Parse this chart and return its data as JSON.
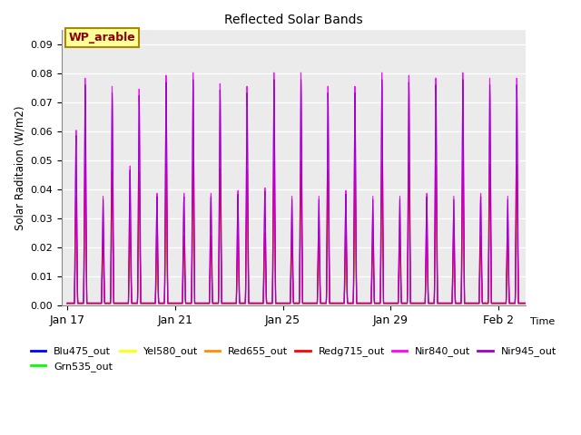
{
  "title": "Reflected Solar Bands",
  "xlabel": "Time",
  "ylabel": "Solar Raditaion (W/m2)",
  "ylim": [
    0,
    0.095
  ],
  "yticks": [
    0.0,
    0.01,
    0.02,
    0.03,
    0.04,
    0.05,
    0.06,
    0.07,
    0.08,
    0.09
  ],
  "annotation": "WP_arable",
  "annotation_color": "#8B0000",
  "annotation_bg": "#FFFF99",
  "annotation_border": "#AA8800",
  "series": [
    {
      "name": "Blu475_out",
      "color": "#0000FF",
      "scale": 0.48
    },
    {
      "name": "Grn535_out",
      "color": "#00FF00",
      "scale": 0.52
    },
    {
      "name": "Yel580_out",
      "color": "#FFFF00",
      "scale": 0.54
    },
    {
      "name": "Red655_out",
      "color": "#FF8C00",
      "scale": 0.56
    },
    {
      "name": "Redg715_out",
      "color": "#FF0000",
      "scale": 0.62
    },
    {
      "name": "Nir840_out",
      "color": "#FF00FF",
      "scale": 1.0
    },
    {
      "name": "Nir945_out",
      "color": "#9900CC",
      "scale": 0.97
    }
  ],
  "xtick_labels": [
    "Jan 17",
    "Jan 21",
    "Jan 25",
    "Jan 29",
    "Feb 2"
  ],
  "xtick_positions": [
    0,
    4,
    8,
    12,
    16
  ],
  "plot_bg": "#EBEBEB",
  "nir840_peaks": [
    0.064,
    0.083,
    0.04,
    0.08,
    0.051,
    0.079,
    0.041,
    0.084,
    0.041,
    0.085,
    0.041,
    0.081,
    0.042,
    0.08,
    0.043,
    0.085,
    0.04,
    0.085,
    0.04,
    0.08,
    0.042,
    0.08,
    0.04,
    0.085,
    0.04,
    0.084,
    0.041,
    0.083,
    0.04,
    0.085,
    0.041,
    0.083,
    0.04,
    0.083
  ]
}
